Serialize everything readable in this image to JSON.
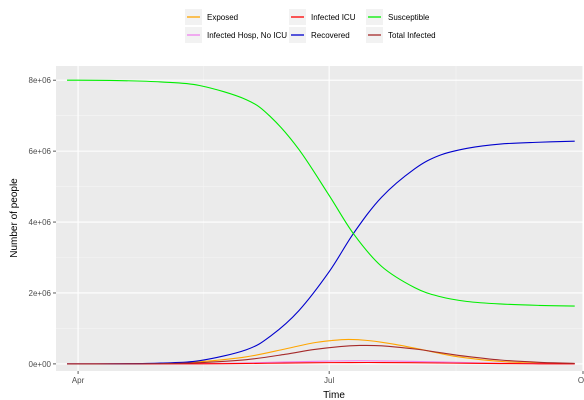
{
  "chart_data": {
    "type": "line",
    "xlabel": "Time",
    "ylabel": "Number of people",
    "x_axis": {
      "type": "date",
      "range": [
        "2020-03-24",
        "2020-10-01"
      ],
      "ticks": [
        {
          "value": "2020-04-01",
          "label": "Apr"
        },
        {
          "value": "2020-07-01",
          "label": "Jul"
        },
        {
          "value": "2020-10-01",
          "label": "Oc"
        }
      ]
    },
    "y_axis": {
      "range": [
        -200000,
        8400000
      ],
      "ticks": [
        {
          "value": 0,
          "label": "0e+00"
        },
        {
          "value": 2000000,
          "label": "2e+06"
        },
        {
          "value": 4000000,
          "label": "4e+06"
        },
        {
          "value": 6000000,
          "label": "6e+06"
        },
        {
          "value": 8000000,
          "label": "8e+06"
        }
      ]
    },
    "grid": true,
    "legend_position": "top",
    "series": [
      {
        "name": "Exposed",
        "color": "#FFA500",
        "points": [
          [
            "2020-03-28",
            0
          ],
          [
            "2020-04-15",
            2000
          ],
          [
            "2020-05-01",
            15000
          ],
          [
            "2020-05-15",
            60000
          ],
          [
            "2020-06-01",
            200000
          ],
          [
            "2020-06-15",
            420000
          ],
          [
            "2020-06-25",
            590000
          ],
          [
            "2020-07-02",
            660000
          ],
          [
            "2020-07-08",
            690000
          ],
          [
            "2020-07-15",
            660000
          ],
          [
            "2020-07-25",
            550000
          ],
          [
            "2020-08-05",
            380000
          ],
          [
            "2020-08-15",
            220000
          ],
          [
            "2020-08-25",
            120000
          ],
          [
            "2020-09-05",
            50000
          ],
          [
            "2020-09-15",
            20000
          ],
          [
            "2020-09-28",
            5000
          ]
        ]
      },
      {
        "name": "Infected Hosp, No ICU",
        "color": "#EE82EE",
        "points": [
          [
            "2020-03-28",
            0
          ],
          [
            "2020-05-01",
            2000
          ],
          [
            "2020-05-15",
            8000
          ],
          [
            "2020-06-01",
            25000
          ],
          [
            "2020-06-15",
            55000
          ],
          [
            "2020-07-01",
            80000
          ],
          [
            "2020-07-12",
            90000
          ],
          [
            "2020-07-25",
            80000
          ],
          [
            "2020-08-10",
            55000
          ],
          [
            "2020-08-25",
            28000
          ],
          [
            "2020-09-10",
            10000
          ],
          [
            "2020-09-28",
            3000
          ]
        ]
      },
      {
        "name": "Infected ICU",
        "color": "#FF0000",
        "points": [
          [
            "2020-03-28",
            0
          ],
          [
            "2020-05-01",
            1000
          ],
          [
            "2020-05-15",
            4000
          ],
          [
            "2020-06-01",
            12000
          ],
          [
            "2020-06-15",
            25000
          ],
          [
            "2020-07-01",
            36000
          ],
          [
            "2020-07-15",
            40000
          ],
          [
            "2020-07-30",
            35000
          ],
          [
            "2020-08-15",
            22000
          ],
          [
            "2020-09-01",
            10000
          ],
          [
            "2020-09-15",
            4000
          ],
          [
            "2020-09-28",
            1500
          ]
        ]
      },
      {
        "name": "Recovered",
        "color": "#0000CD",
        "points": [
          [
            "2020-03-28",
            0
          ],
          [
            "2020-04-15",
            3000
          ],
          [
            "2020-05-01",
            25000
          ],
          [
            "2020-05-15",
            90000
          ],
          [
            "2020-06-01",
            400000
          ],
          [
            "2020-06-10",
            800000
          ],
          [
            "2020-06-20",
            1500000
          ],
          [
            "2020-07-01",
            2600000
          ],
          [
            "2020-07-10",
            3700000
          ],
          [
            "2020-07-20",
            4700000
          ],
          [
            "2020-08-01",
            5500000
          ],
          [
            "2020-08-10",
            5880000
          ],
          [
            "2020-08-20",
            6080000
          ],
          [
            "2020-09-01",
            6200000
          ],
          [
            "2020-09-15",
            6250000
          ],
          [
            "2020-09-28",
            6280000
          ]
        ]
      },
      {
        "name": "Susceptible",
        "color": "#00EE00",
        "points": [
          [
            "2020-03-28",
            8000000
          ],
          [
            "2020-04-15",
            7990000
          ],
          [
            "2020-05-01",
            7950000
          ],
          [
            "2020-05-15",
            7850000
          ],
          [
            "2020-06-01",
            7450000
          ],
          [
            "2020-06-10",
            6950000
          ],
          [
            "2020-06-20",
            6050000
          ],
          [
            "2020-07-01",
            4750000
          ],
          [
            "2020-07-10",
            3650000
          ],
          [
            "2020-07-20",
            2750000
          ],
          [
            "2020-08-01",
            2150000
          ],
          [
            "2020-08-10",
            1900000
          ],
          [
            "2020-08-20",
            1760000
          ],
          [
            "2020-09-01",
            1690000
          ],
          [
            "2020-09-15",
            1650000
          ],
          [
            "2020-09-28",
            1630000
          ]
        ]
      },
      {
        "name": "Total Infected",
        "color": "#A52A2A",
        "points": [
          [
            "2020-03-28",
            0
          ],
          [
            "2020-04-15",
            1000
          ],
          [
            "2020-05-01",
            8000
          ],
          [
            "2020-05-15",
            35000
          ],
          [
            "2020-06-01",
            120000
          ],
          [
            "2020-06-15",
            270000
          ],
          [
            "2020-06-25",
            400000
          ],
          [
            "2020-07-05",
            490000
          ],
          [
            "2020-07-12",
            520000
          ],
          [
            "2020-07-20",
            510000
          ],
          [
            "2020-08-01",
            420000
          ],
          [
            "2020-08-10",
            320000
          ],
          [
            "2020-08-20",
            210000
          ],
          [
            "2020-09-01",
            110000
          ],
          [
            "2020-09-15",
            45000
          ],
          [
            "2020-09-28",
            15000
          ]
        ]
      }
    ]
  }
}
